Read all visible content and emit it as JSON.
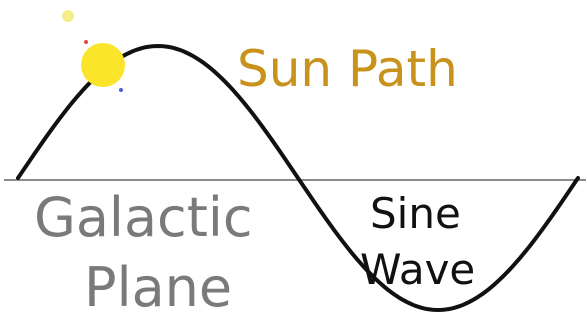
{
  "labels": {
    "sun_path": "Sun Path",
    "galactic": [
      "Galactic",
      "Plane"
    ],
    "sine": [
      "Sine",
      "Wave"
    ]
  }
}
